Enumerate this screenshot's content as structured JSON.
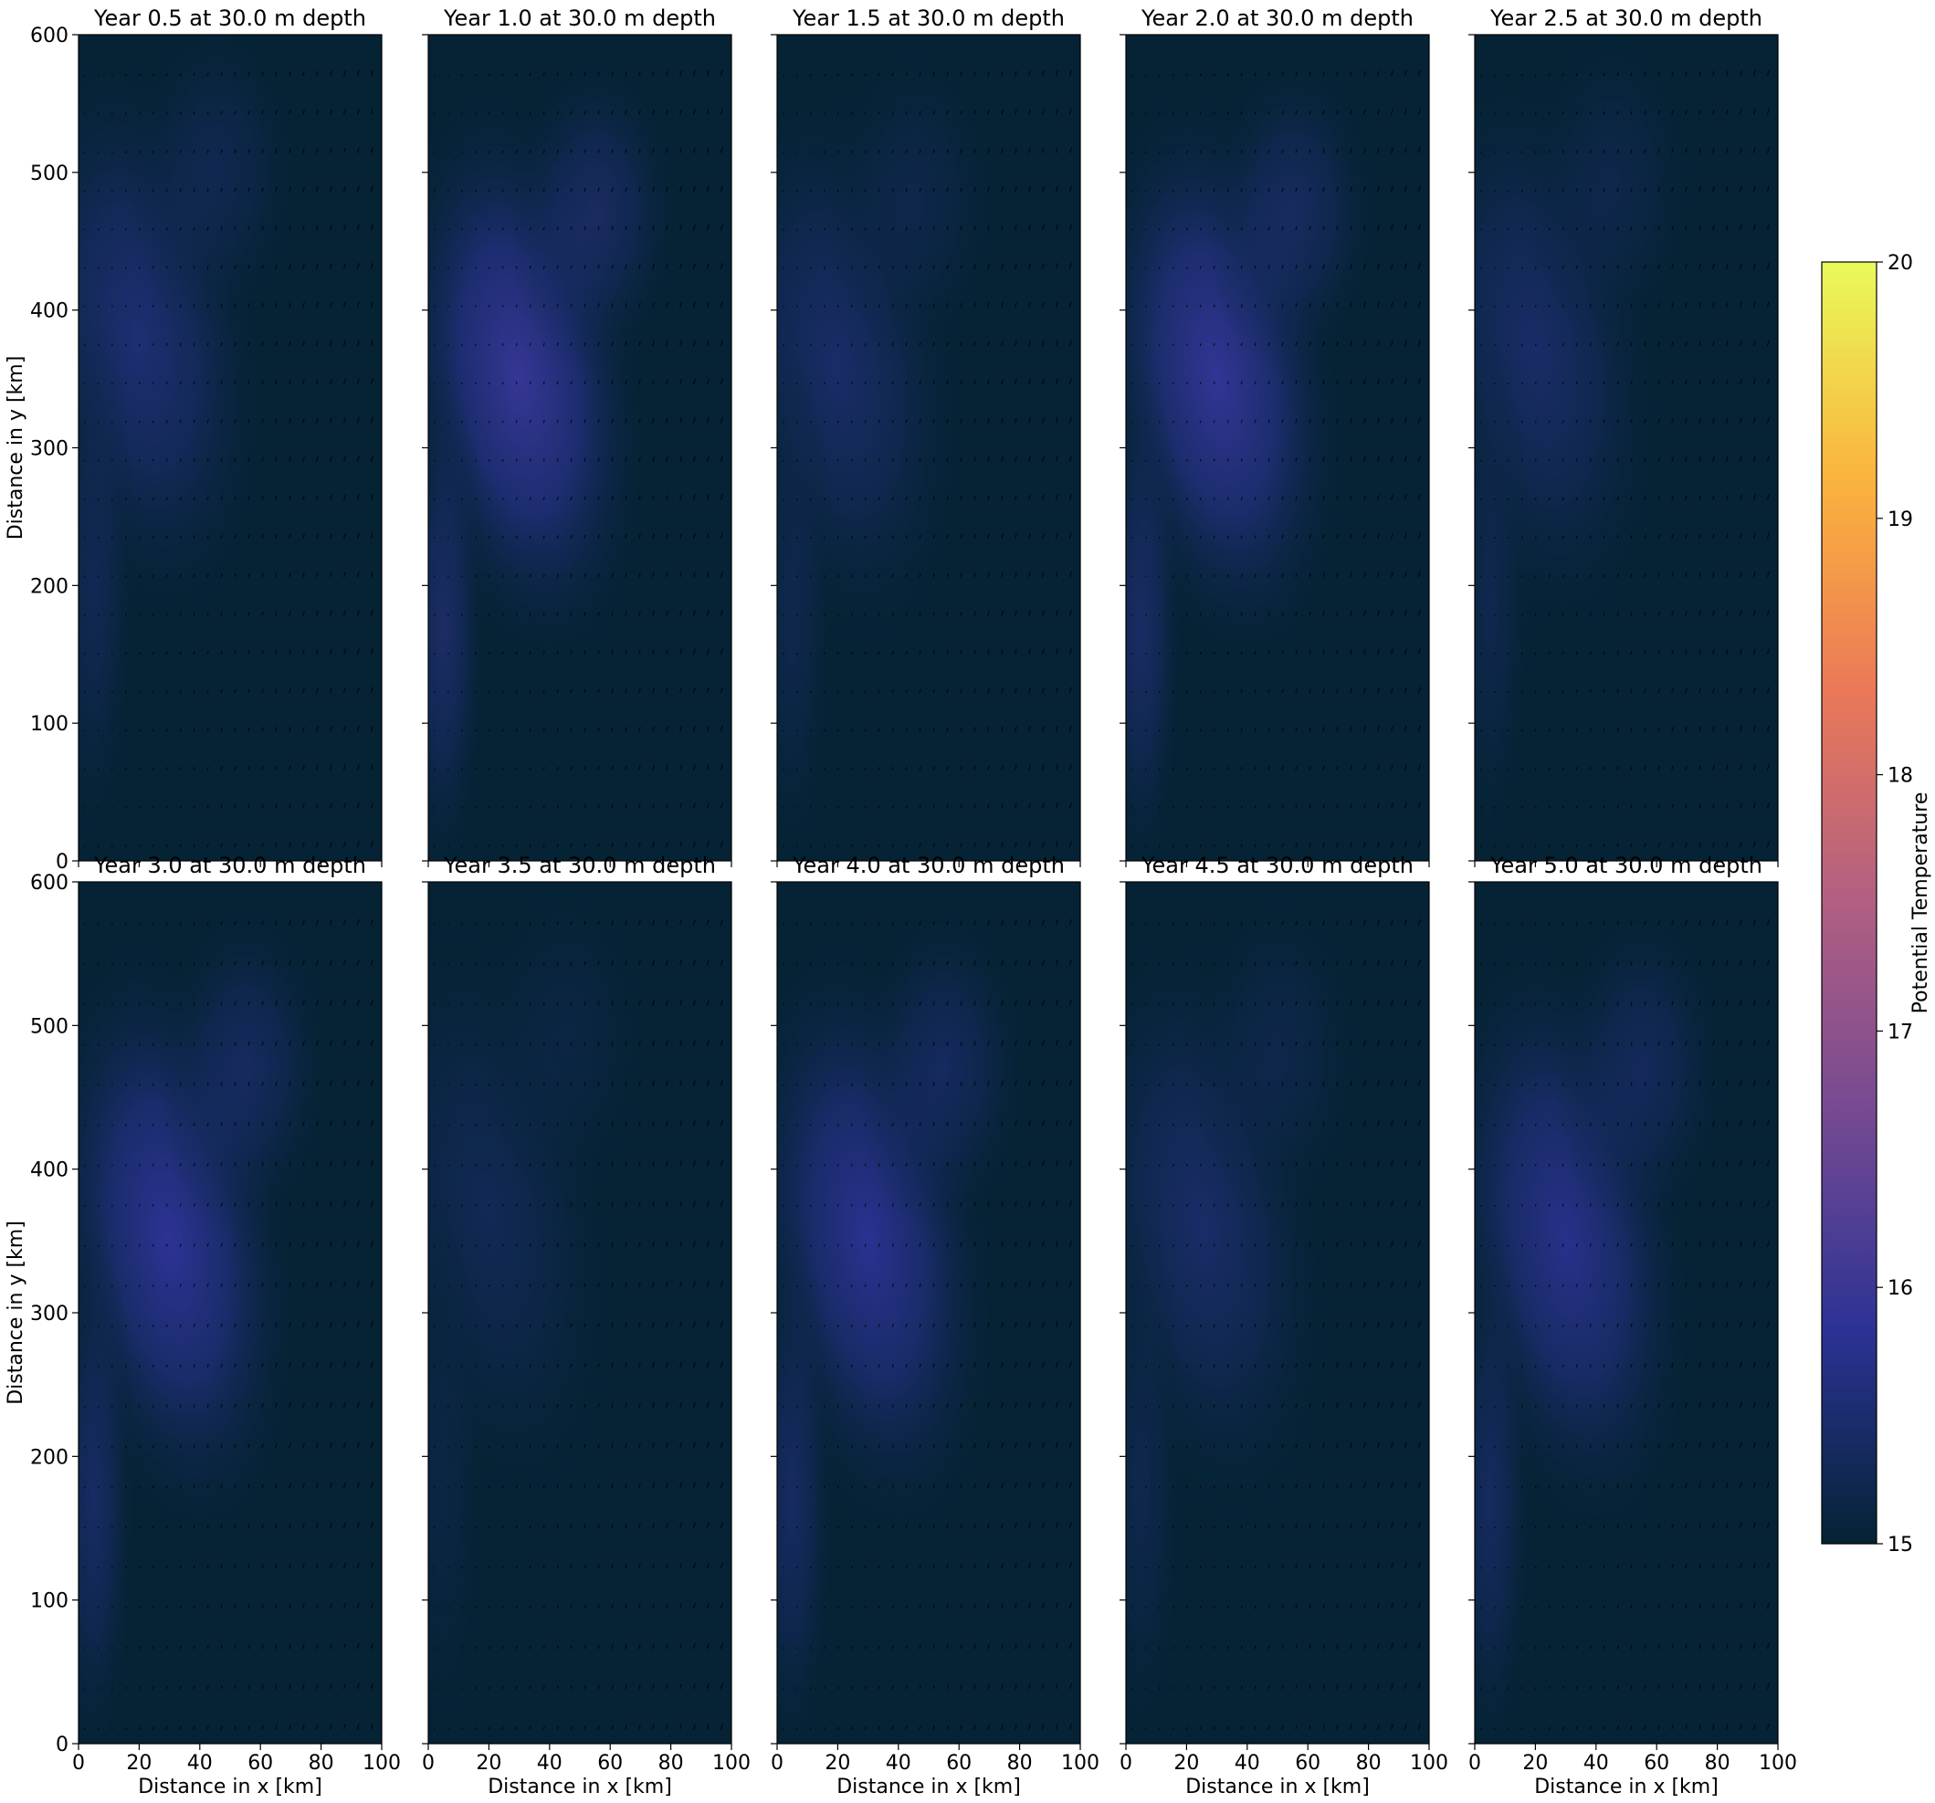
{
  "colorbar": {
    "label": "Potential Temperature",
    "min": 15,
    "max": 20,
    "ticks": [
      "15",
      "16",
      "17",
      "18",
      "19",
      "20"
    ],
    "colormap": "thermal",
    "colors": [
      "#042333",
      "#2c3395",
      "#744992",
      "#b15f82",
      "#eb7958",
      "#fbb43d",
      "#e8fa5b"
    ]
  },
  "axes": {
    "xlabel": "Distance in x [km]",
    "ylabel": "Distance in y [km]",
    "xlim": [
      0,
      100
    ],
    "ylim": [
      0,
      600
    ],
    "xticks": [
      "0",
      "20",
      "40",
      "60",
      "80",
      "100"
    ],
    "yticks": [
      "0",
      "100",
      "200",
      "300",
      "400",
      "500",
      "600"
    ]
  },
  "chart_data": [
    {
      "type": "heatmap",
      "title": "Year 0.5 at 30.0 m depth",
      "year": 0.5,
      "depth_m": 30.0,
      "peak_temperature": 15.55,
      "peak_location_km": [
        20,
        380
      ],
      "overlay": "velocity quiver"
    },
    {
      "type": "heatmap",
      "title": "Year 1.0 at 30.0 m depth",
      "year": 1.0,
      "depth_m": 30.0,
      "peak_temperature": 15.95,
      "peak_location_km": [
        30,
        350
      ],
      "overlay": "velocity quiver"
    },
    {
      "type": "heatmap",
      "title": "Year 1.5 at 30.0 m depth",
      "year": 1.5,
      "depth_m": 30.0,
      "peak_temperature": 15.45,
      "peak_location_km": [
        20,
        360
      ],
      "overlay": "velocity quiver"
    },
    {
      "type": "heatmap",
      "title": "Year 2.0 at 30.0 m depth",
      "year": 2.0,
      "depth_m": 30.0,
      "peak_temperature": 15.9,
      "peak_location_km": [
        30,
        350
      ],
      "overlay": "velocity quiver"
    },
    {
      "type": "heatmap",
      "title": "Year 2.5 at 30.0 m depth",
      "year": 2.5,
      "depth_m": 30.0,
      "peak_temperature": 15.45,
      "peak_location_km": [
        20,
        370
      ],
      "overlay": "velocity quiver"
    },
    {
      "type": "heatmap",
      "title": "Year 3.0 at 30.0 m depth",
      "year": 3.0,
      "depth_m": 30.0,
      "peak_temperature": 15.85,
      "peak_location_km": [
        30,
        350
      ],
      "overlay": "velocity quiver"
    },
    {
      "type": "heatmap",
      "title": "Year 3.5 at 30.0 m depth",
      "year": 3.5,
      "depth_m": 30.0,
      "peak_temperature": 15.3,
      "peak_location_km": [
        20,
        370
      ],
      "overlay": "velocity quiver"
    },
    {
      "type": "heatmap",
      "title": "Year 4.0 at 30.0 m depth",
      "year": 4.0,
      "depth_m": 30.0,
      "peak_temperature": 15.8,
      "peak_location_km": [
        30,
        350
      ],
      "overlay": "velocity quiver"
    },
    {
      "type": "heatmap",
      "title": "Year 4.5 at 30.0 m depth",
      "year": 4.5,
      "depth_m": 30.0,
      "peak_temperature": 15.45,
      "peak_location_km": [
        25,
        360
      ],
      "overlay": "velocity quiver"
    },
    {
      "type": "heatmap",
      "title": "Year 5.0 at 30.0 m depth",
      "year": 5.0,
      "depth_m": 30.0,
      "peak_temperature": 15.75,
      "peak_location_km": [
        30,
        350
      ],
      "overlay": "velocity quiver"
    }
  ]
}
